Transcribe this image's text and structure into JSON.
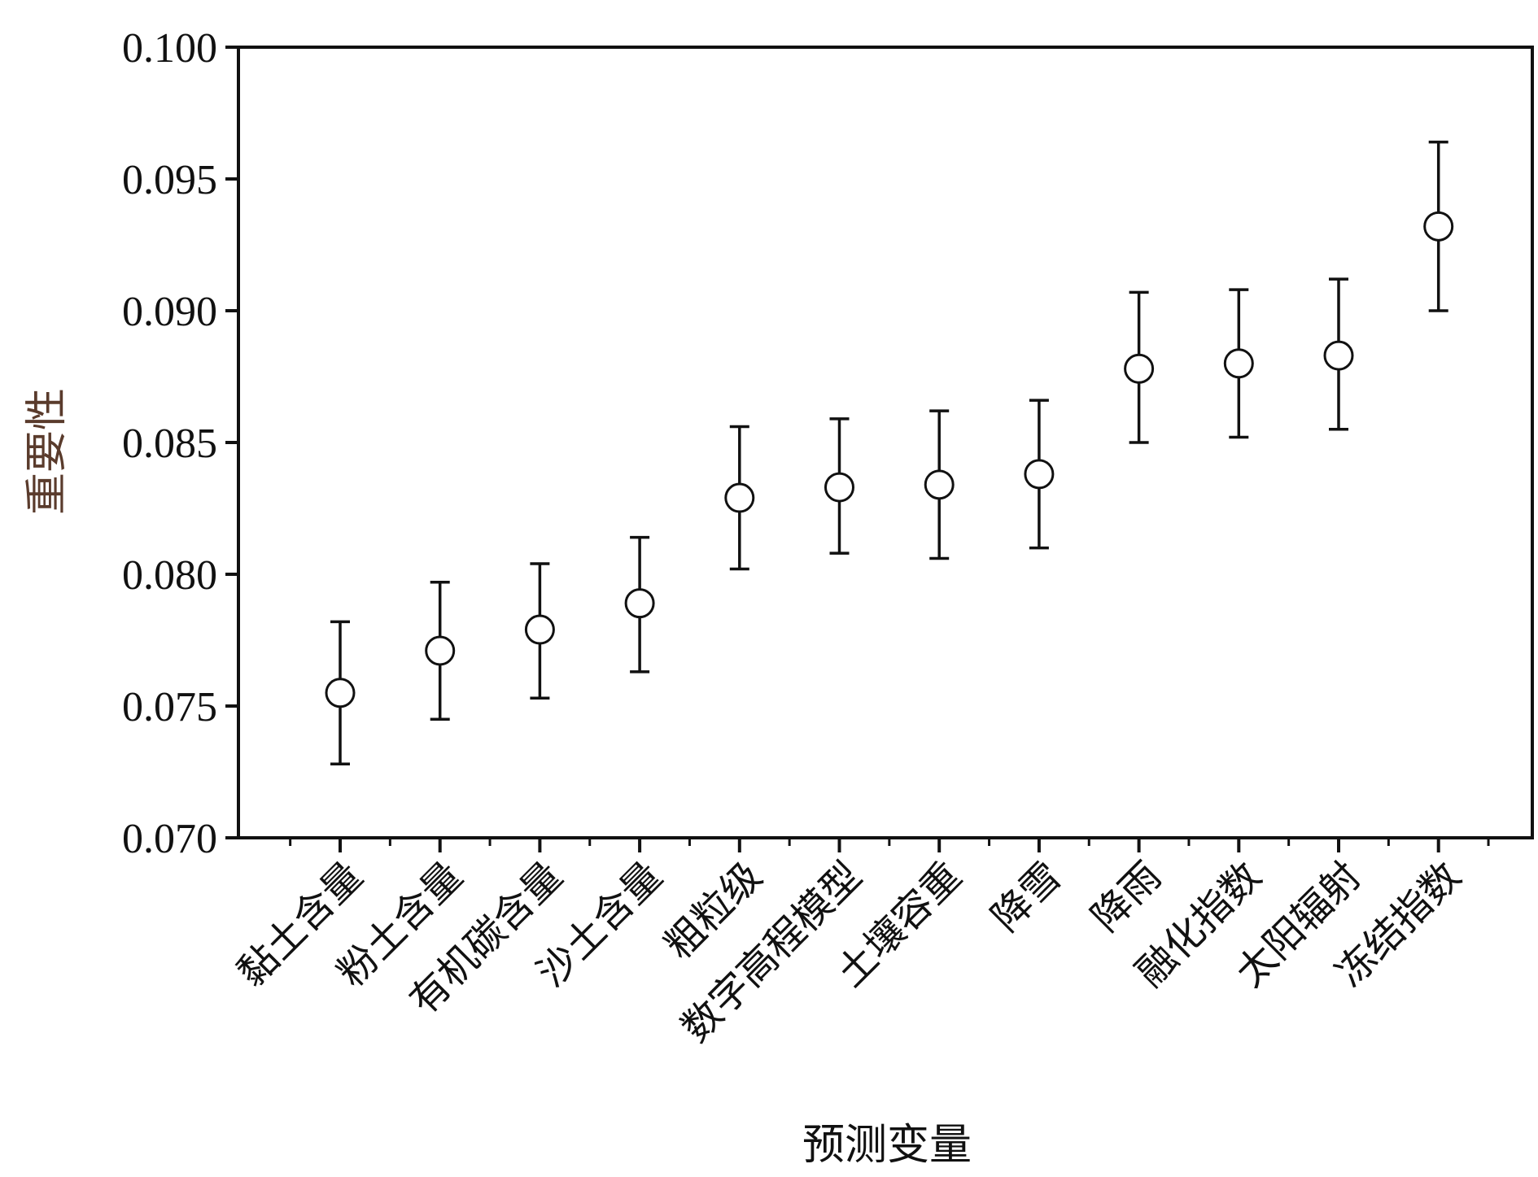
{
  "chart_data": {
    "type": "scatter",
    "title": "",
    "xlabel": "预测变量",
    "ylabel": "重要性",
    "ylim": [
      0.07,
      0.1
    ],
    "yticks": [
      "0.070",
      "0.075",
      "0.080",
      "0.085",
      "0.090",
      "0.095",
      "0.100"
    ],
    "grid": false,
    "categories": [
      "黏土含量",
      "粉土含量",
      "有机碳含量",
      "沙土含量",
      "粗粒级",
      "数字高程模型",
      "土壤容重",
      "降雪",
      "降雨",
      "融化指数",
      "太阳辐射",
      "冻结指数"
    ],
    "series": [
      {
        "values": [
          0.0755,
          0.0771,
          0.0779,
          0.0789,
          0.0829,
          0.0833,
          0.0834,
          0.0838,
          0.0878,
          0.088,
          0.0883,
          0.0932
        ],
        "error_upper": [
          0.0782,
          0.0797,
          0.0804,
          0.0814,
          0.0856,
          0.0859,
          0.0862,
          0.0866,
          0.0907,
          0.0908,
          0.0912,
          0.0964
        ],
        "error_lower": [
          0.0728,
          0.0745,
          0.0753,
          0.0763,
          0.0802,
          0.0808,
          0.0806,
          0.081,
          0.085,
          0.0852,
          0.0855,
          0.09
        ]
      }
    ],
    "colors": {
      "axis": "#111111",
      "marker_fill": "#ffffff",
      "marker_stroke": "#111111",
      "ylabel": "#5a3b2c"
    }
  }
}
